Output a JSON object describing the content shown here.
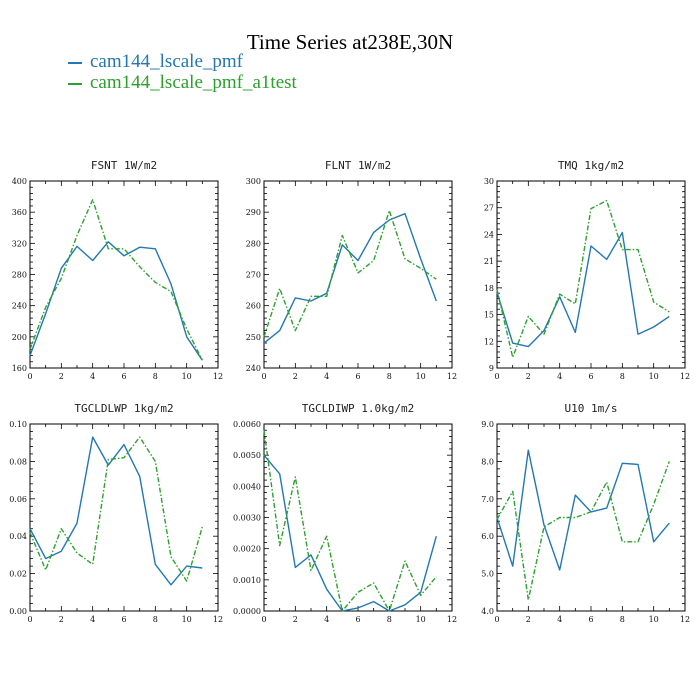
{
  "title": "Time Series at238E,30N",
  "legend": [
    {
      "name": "cam144_lscale_pmf",
      "color": "#2277b4"
    },
    {
      "name": "cam144_lscale_pmf_a1test",
      "color": "#2ca02c"
    }
  ],
  "chart_data": [
    {
      "type": "line",
      "title": "FSNT   1W/m2",
      "x": [
        0,
        1,
        2,
        3,
        4,
        5,
        6,
        7,
        8,
        9,
        10,
        11
      ],
      "xlim": [
        0,
        12
      ],
      "xticks": [
        "0",
        "2",
        "4",
        "6",
        "8",
        "10",
        "12"
      ],
      "ylim": [
        160,
        400
      ],
      "yticks": [
        "160",
        "200",
        "240",
        "280",
        "320",
        "360",
        "400"
      ],
      "series": [
        {
          "name": "cam144_lscale_pmf",
          "values": [
            176,
            230,
            288,
            316,
            298,
            322,
            304,
            315,
            313,
            268,
            200,
            170
          ]
        },
        {
          "name": "cam144_lscale_pmf_a1test",
          "values": [
            184,
            238,
            275,
            330,
            376,
            313,
            313,
            290,
            270,
            258,
            210,
            170
          ]
        }
      ]
    },
    {
      "type": "line",
      "title": "FLNT   1W/m2",
      "x": [
        0,
        1,
        2,
        3,
        4,
        5,
        6,
        7,
        8,
        9,
        10,
        11
      ],
      "xlim": [
        0,
        12
      ],
      "xticks": [
        "0",
        "2",
        "4",
        "6",
        "8",
        "10",
        "12"
      ],
      "ylim": [
        240,
        300
      ],
      "yticks": [
        "240",
        "250",
        "260",
        "270",
        "280",
        "290",
        "300"
      ],
      "series": [
        {
          "name": "cam144_lscale_pmf",
          "values": [
            248,
            252,
            262.5,
            261.5,
            264,
            279.5,
            274.5,
            283.5,
            287.5,
            289.5,
            275,
            261.5
          ]
        },
        {
          "name": "cam144_lscale_pmf_a1test",
          "values": [
            250,
            265.5,
            252,
            263,
            263,
            282.5,
            270.5,
            274.5,
            290.5,
            275,
            272,
            268.5
          ]
        }
      ]
    },
    {
      "type": "line",
      "title": "TMQ   1kg/m2",
      "x": [
        0,
        1,
        2,
        3,
        4,
        5,
        6,
        7,
        8,
        9,
        10,
        11
      ],
      "xlim": [
        0,
        12
      ],
      "xticks": [
        "0",
        "2",
        "4",
        "6",
        "8",
        "10",
        "12"
      ],
      "ylim": [
        9,
        30
      ],
      "yticks": [
        "9",
        "12",
        "15",
        "18",
        "21",
        "24",
        "27",
        "30"
      ],
      "series": [
        {
          "name": "cam144_lscale_pmf",
          "values": [
            17.5,
            11.8,
            11.4,
            13.2,
            17,
            13,
            22.7,
            21.2,
            24.2,
            12.8,
            13.6,
            14.8
          ]
        },
        {
          "name": "cam144_lscale_pmf_a1test",
          "values": [
            17.8,
            10.2,
            14.8,
            12.8,
            17.3,
            16.2,
            26.9,
            27.8,
            22.3,
            22.3,
            16.4,
            15.3
          ]
        }
      ]
    },
    {
      "type": "line",
      "title": "TGCLDLWP   1kg/m2",
      "x": [
        0,
        1,
        2,
        3,
        4,
        5,
        6,
        7,
        8,
        9,
        10,
        11
      ],
      "xlim": [
        0,
        12
      ],
      "xticks": [
        "0",
        "2",
        "4",
        "6",
        "8",
        "10",
        "12"
      ],
      "ylim": [
        0,
        0.1
      ],
      "yticks": [
        "0.00",
        "0.02",
        "0.04",
        "0.06",
        "0.08",
        "0.10"
      ],
      "series": [
        {
          "name": "cam144_lscale_pmf",
          "values": [
            0.044,
            0.028,
            0.032,
            0.047,
            0.093,
            0.078,
            0.089,
            0.072,
            0.025,
            0.014,
            0.024,
            0.023
          ]
        },
        {
          "name": "cam144_lscale_pmf_a1test",
          "values": [
            0.042,
            0.022,
            0.044,
            0.031,
            0.025,
            0.081,
            0.082,
            0.093,
            0.08,
            0.029,
            0.016,
            0.045
          ]
        }
      ]
    },
    {
      "type": "line",
      "title": "TGCLDIWP   1.0kg/m2",
      "x": [
        0,
        1,
        2,
        3,
        4,
        5,
        6,
        7,
        8,
        9,
        10,
        11
      ],
      "xlim": [
        0,
        12
      ],
      "xticks": [
        "0",
        "2",
        "4",
        "6",
        "8",
        "10",
        "12"
      ],
      "ylim": [
        0,
        0.006
      ],
      "yticks": [
        "0.0000",
        "0.0010",
        "0.0020",
        "0.0030",
        "0.0040",
        "0.0050",
        "0.0060"
      ],
      "series": [
        {
          "name": "cam144_lscale_pmf",
          "values": [
            0.005,
            0.0044,
            0.0014,
            0.0018,
            0.0007,
            0.0,
            0.0001,
            0.0003,
            0.0,
            0.0002,
            0.0006,
            0.0024
          ]
        },
        {
          "name": "cam144_lscale_pmf_a1test",
          "values": [
            0.0058,
            0.0021,
            0.0043,
            0.0013,
            0.0024,
            0.0,
            0.0006,
            0.0009,
            0.0,
            0.0016,
            0.0005,
            0.0011
          ]
        }
      ]
    },
    {
      "type": "line",
      "title": "U10   1m/s",
      "x": [
        0,
        1,
        2,
        3,
        4,
        5,
        6,
        7,
        8,
        9,
        10,
        11
      ],
      "xlim": [
        0,
        12
      ],
      "xticks": [
        "0",
        "2",
        "4",
        "6",
        "8",
        "10",
        "12"
      ],
      "ylim": [
        4,
        9
      ],
      "yticks": [
        "4.0",
        "5.0",
        "6.0",
        "7.0",
        "8.0",
        "9.0"
      ],
      "series": [
        {
          "name": "cam144_lscale_pmf",
          "values": [
            6.5,
            5.2,
            8.3,
            6.3,
            5.1,
            7.1,
            6.65,
            6.75,
            7.95,
            7.92,
            5.85,
            6.35
          ]
        },
        {
          "name": "cam144_lscale_pmf_a1test",
          "values": [
            6.45,
            7.2,
            4.3,
            6.25,
            6.5,
            6.5,
            6.65,
            7.45,
            5.85,
            5.85,
            6.85,
            8.0
          ]
        }
      ]
    }
  ]
}
